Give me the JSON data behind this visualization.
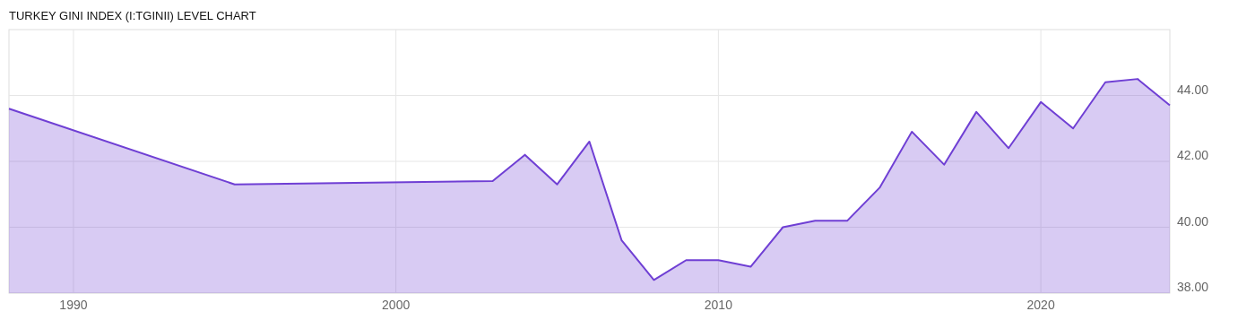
{
  "chart_data": {
    "type": "area",
    "title": "TURKEY GINI INDEX (I:TGINII) LEVEL CHART",
    "x": [
      1988,
      1995,
      2003,
      2004,
      2005,
      2006,
      2007,
      2008,
      2009,
      2010,
      2011,
      2012,
      2013,
      2014,
      2015,
      2016,
      2017,
      2018,
      2019,
      2020,
      2021,
      2022,
      2023,
      2024
    ],
    "series": [
      {
        "color": "#6f3fd4",
        "values": [
          43.6,
          41.3,
          41.4,
          42.2,
          41.3,
          42.6,
          39.6,
          38.4,
          39.0,
          39.0,
          38.8,
          40.0,
          40.2,
          40.2,
          41.2,
          42.9,
          41.9,
          43.5,
          42.4,
          43.8,
          43.0,
          44.4,
          44.5,
          43.7
        ]
      }
    ],
    "xlim": [
      1988,
      2024
    ],
    "xticks": [
      1990,
      2000,
      2010,
      2020
    ],
    "ylim": [
      38,
      46
    ],
    "yticks": [
      {
        "value": 38,
        "label": "38.00"
      },
      {
        "value": 40,
        "label": "40.00"
      },
      {
        "value": 42,
        "label": "42.00"
      },
      {
        "value": 44,
        "label": "44.00"
      }
    ],
    "grid": true
  }
}
